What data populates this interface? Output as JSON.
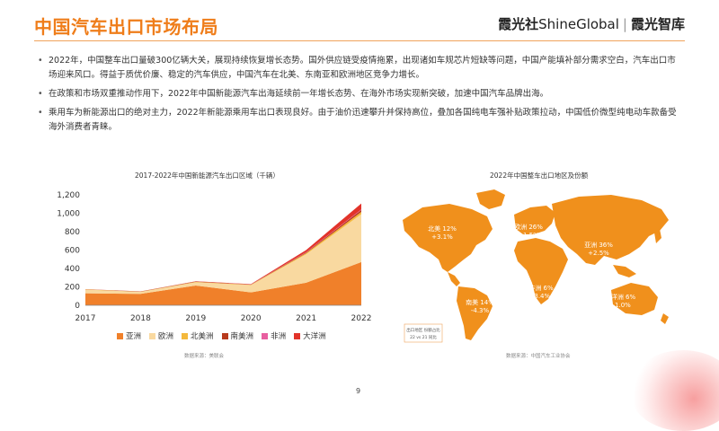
{
  "header": {
    "title": "中国汽车出口市场布局",
    "brand_left": "霞光社",
    "brand_latin": "ShineGlobal",
    "brand_sep": "|",
    "brand_right": "霞光智库"
  },
  "bullets": [
    "2022年，中国整车出口量破300亿辆大关，展现持续恢复增长态势。国外供应链受疫情拖累，出现诸如车规芯片短缺等问题，中国产能填补部分需求空白，汽车出口市场迎来风口。得益于质优价廉、稳定的汽车供应，中国汽车在北美、东南亚和欧洲地区竞争力增长。",
    "在政策和市场双重推动作用下，2022年中国新能源汽车出海延续前一年增长态势、在海外市场实现新突破，加速中国汽车品牌出海。",
    "乘用车为新能源出口的绝对主力，2022年新能源乘用车出口表现良好。由于油价迅速攀升并保持高位，叠加各国纯电车强补贴政策拉动，中国低价微型纯电动车款备受海外消费者青睐。"
  ],
  "left_chart": {
    "source": "数据来源：美联会"
  },
  "right_chart": {
    "title": "2022年中国整车出口地区及份额",
    "source": "数据来源：中国汽车工业协会",
    "legend_lines": [
      "出口地区  份额占比",
      "22 vs 21 同比"
    ],
    "regions": [
      {
        "name": "北美",
        "share": "12%",
        "change": "+3.1%"
      },
      {
        "name": "欧洲",
        "share": "26%",
        "change": "+1.5%"
      },
      {
        "name": "亚洲",
        "share": "36%",
        "change": "+2.5%"
      },
      {
        "name": "非洲",
        "share": "6%",
        "change": "-3.4%"
      },
      {
        "name": "南美",
        "share": "14%",
        "change": "-4.3%"
      },
      {
        "name": "大洋洲",
        "share": "6%",
        "change": "+1.0%"
      }
    ]
  },
  "chart_data": {
    "type": "area",
    "title": "2017-2022年中国新能源汽车出口区域（千辆）",
    "x": [
      "2017",
      "2018",
      "2019",
      "2020",
      "2021",
      "2022"
    ],
    "ylim": [
      0,
      1200
    ],
    "yticks": [
      "0",
      "200",
      "400",
      "600",
      "800",
      "1,000",
      "1,200"
    ],
    "stacked": true,
    "grid": false,
    "legend_position": "bottom",
    "series": [
      {
        "name": "亚洲",
        "color": "#f0802a",
        "values": [
          130,
          125,
          215,
          140,
          245,
          470
        ]
      },
      {
        "name": "欧洲",
        "color": "#f9d9a0",
        "values": [
          40,
          20,
          35,
          80,
          310,
          520
        ]
      },
      {
        "name": "北美洲",
        "color": "#f4b93c",
        "values": [
          3,
          3,
          5,
          3,
          12,
          25
        ]
      },
      {
        "name": "南美洲",
        "color": "#b83a1d",
        "values": [
          2,
          2,
          3,
          3,
          8,
          20
        ]
      },
      {
        "name": "非洲",
        "color": "#e85fa0",
        "values": [
          0,
          0,
          1,
          1,
          3,
          6
        ]
      },
      {
        "name": "大洋洲",
        "color": "#e2332a",
        "values": [
          1,
          1,
          2,
          3,
          22,
          65
        ]
      }
    ]
  },
  "page_number": "9"
}
